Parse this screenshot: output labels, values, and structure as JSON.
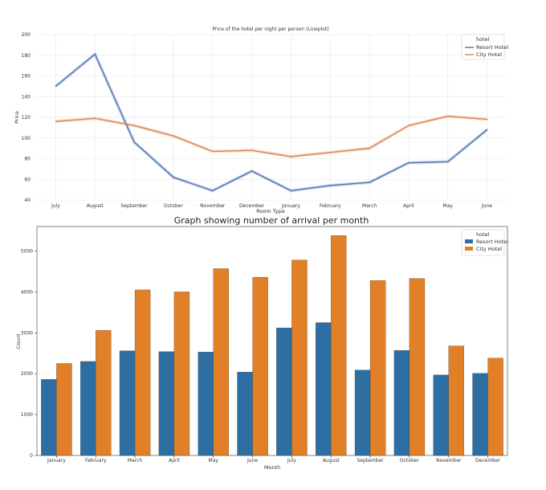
{
  "chart_data": [
    {
      "type": "line",
      "title": "Price of the hotel per night per person (Lineplot)",
      "xlabel": "Room Type",
      "ylabel": "Price",
      "ylim": [
        40,
        200
      ],
      "yticks": [
        40,
        60,
        80,
        100,
        120,
        140,
        160,
        180,
        200
      ],
      "grid": true,
      "legend": {
        "title": "hotel",
        "placement": "top-right"
      },
      "categories": [
        "July",
        "August",
        "September",
        "October",
        "November",
        "December",
        "January",
        "February",
        "March",
        "April",
        "May",
        "June"
      ],
      "series": [
        {
          "name": "Resort Hotel",
          "color": "#4c72b0",
          "values": [
            150,
            181,
            96,
            62,
            49,
            68,
            49,
            54,
            57,
            76,
            77,
            108
          ]
        },
        {
          "name": "City Hotel",
          "color": "#dd8452",
          "values": [
            116,
            119,
            112,
            102,
            87,
            88,
            82,
            86,
            90,
            112,
            121,
            118
          ]
        }
      ]
    },
    {
      "type": "bar",
      "title": "Graph showing number of arrival per month",
      "xlabel": "Month",
      "ylabel": "Count",
      "ylim": [
        0,
        5600
      ],
      "yticks": [
        0,
        1000,
        2000,
        3000,
        4000,
        5000
      ],
      "grid": false,
      "legend": {
        "title": "hotel",
        "placement": "top-right"
      },
      "categories": [
        "January",
        "February",
        "March",
        "April",
        "May",
        "June",
        "July",
        "August",
        "September",
        "October",
        "November",
        "December"
      ],
      "series": [
        {
          "name": "Resort Hotel",
          "color": "#2d6fa3",
          "values": [
            1860,
            2300,
            2560,
            2540,
            2530,
            2040,
            3120,
            3250,
            2090,
            2570,
            1970,
            2010
          ]
        },
        {
          "name": "City Hotel",
          "color": "#e28027",
          "values": [
            2250,
            3060,
            4050,
            4000,
            4570,
            4360,
            4780,
            5380,
            4280,
            4330,
            2680,
            2380
          ]
        }
      ]
    }
  ]
}
